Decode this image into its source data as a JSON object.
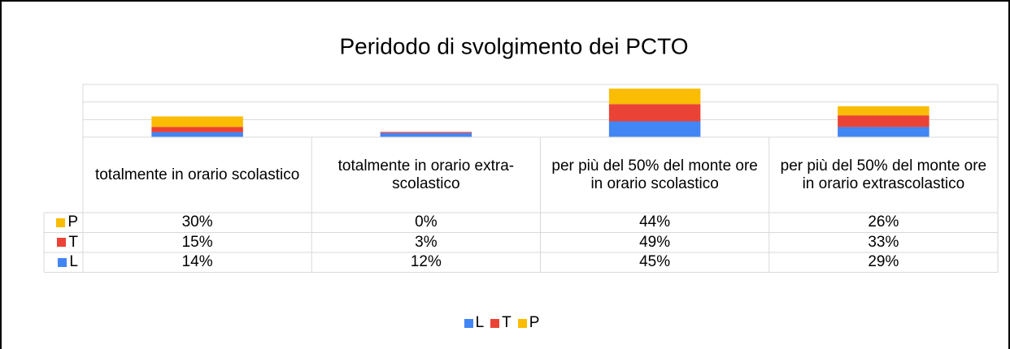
{
  "chart_data": {
    "type": "bar",
    "stacked": true,
    "title": "Peridodo di svolgimento dei PCTO",
    "categories": [
      "totalmente in orario scolastico",
      "totalmente in orario extra-scolastico",
      "per più del 50% del monte ore in orario scolastico",
      "per più del 50% del monte ore in orario extrascolastico"
    ],
    "series": [
      {
        "name": "L",
        "color": "#4285f4",
        "values": [
          14,
          12,
          45,
          29
        ],
        "value_labels": [
          "14%",
          "12%",
          "45%",
          "29%"
        ]
      },
      {
        "name": "T",
        "color": "#ea4335",
        "values": [
          15,
          3,
          49,
          33
        ],
        "value_labels": [
          "15%",
          "3%",
          "49%",
          "33%"
        ]
      },
      {
        "name": "P",
        "color": "#fbbc04",
        "values": [
          30,
          0,
          44,
          26
        ],
        "value_labels": [
          "30%",
          "0%",
          "44%",
          "26%"
        ]
      }
    ],
    "ylim": [
      0,
      150
    ],
    "yticks": [
      0,
      50,
      100,
      150
    ],
    "grid": true,
    "legend": "bottom",
    "data_table": true
  }
}
